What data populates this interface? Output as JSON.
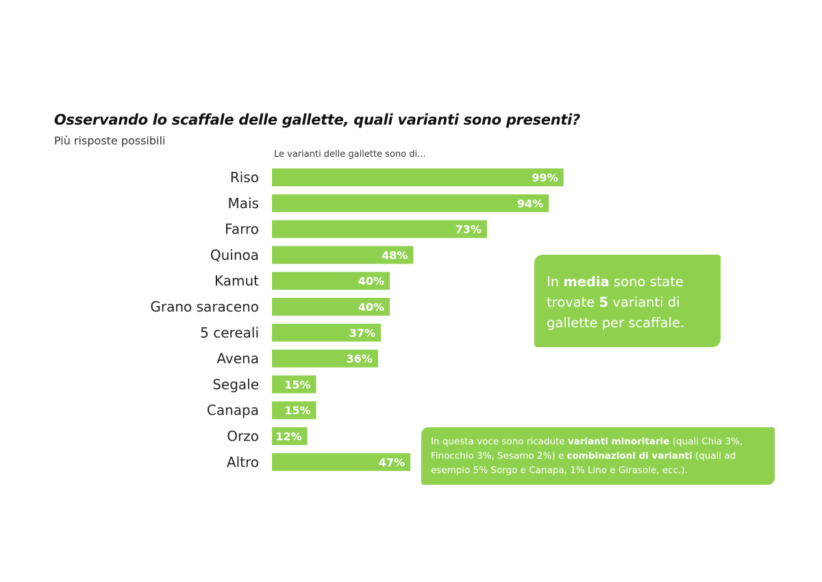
{
  "title": "Osservando lo scaffale delle gallette, quali varianti sono presenti?",
  "subtitle": "Più risposte possibili",
  "chart_header": "Le varianti delle gallette sono di...",
  "colors": {
    "bar": "#8fd14f",
    "bar_text": "#ffffff",
    "callout": "#8fd14f"
  },
  "chart_data": {
    "type": "bar",
    "orientation": "horizontal",
    "categories": [
      "Riso",
      "Mais",
      "Farro",
      "Quinoa",
      "Kamut",
      "Grano saraceno",
      "5 cereali",
      "Avena",
      "Segale",
      "Canapa",
      "Orzo",
      "Altro"
    ],
    "values": [
      99,
      94,
      73,
      48,
      40,
      40,
      37,
      36,
      15,
      15,
      12,
      47
    ],
    "value_labels": [
      "99%",
      "94%",
      "73%",
      "48%",
      "40%",
      "40%",
      "37%",
      "36%",
      "15%",
      "15%",
      "12%",
      "47%"
    ],
    "xlim": [
      0,
      100
    ],
    "grid": false
  },
  "callout_main": {
    "p1": "In ",
    "b1": "media",
    "p2": " sono state trovate ",
    "b2": "5",
    "p3": " varianti di gallette per scaffale."
  },
  "callout_note": {
    "p1": "In questa voce sono ricadute ",
    "b1": "varianti minoritarie",
    "p2": " (quali Chia 3%, Finocchio 3%, Sesamo 2%) e ",
    "b2": "combinazioni di varianti",
    "p3": " (quali ad esempio 5% Sorgo e Canapa, 1% Lino e Girasole, ecc.)."
  }
}
